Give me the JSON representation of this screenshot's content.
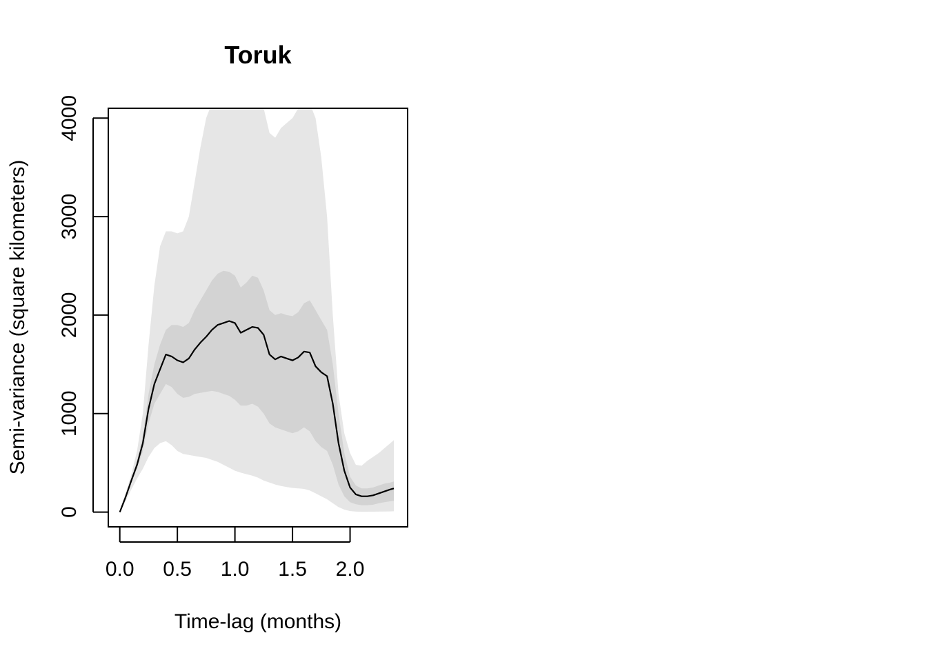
{
  "chart_data": {
    "type": "area",
    "title": "Toruk",
    "xlabel": "Time-lag (months)",
    "ylabel": "Semi-variance (square kilometers)",
    "xlim": [
      -0.1,
      2.5
    ],
    "ylim": [
      -150,
      4100
    ],
    "x_ticks": [
      0.0,
      0.5,
      1.0,
      1.5,
      2.0
    ],
    "x_tick_labels": [
      "0.0",
      "0.5",
      "1.0",
      "1.5",
      "2.0"
    ],
    "y_ticks": [
      0,
      1000,
      2000,
      3000,
      4000
    ],
    "y_tick_labels": [
      "0",
      "1000",
      "2000",
      "3000",
      "4000"
    ],
    "grid": false,
    "colors": {
      "outer_band": "#e6e6e6",
      "inner_band": "#d3d3d3",
      "line": "#000000"
    },
    "x": [
      0.0,
      0.05,
      0.1,
      0.15,
      0.2,
      0.25,
      0.3,
      0.35,
      0.4,
      0.45,
      0.5,
      0.55,
      0.6,
      0.65,
      0.7,
      0.75,
      0.8,
      0.85,
      0.9,
      0.95,
      1.0,
      1.05,
      1.1,
      1.15,
      1.2,
      1.25,
      1.3,
      1.35,
      1.4,
      1.45,
      1.5,
      1.55,
      1.6,
      1.65,
      1.7,
      1.75,
      1.8,
      1.85,
      1.9,
      1.95,
      2.0,
      2.05,
      2.1,
      2.15,
      2.2,
      2.25,
      2.3,
      2.35,
      2.38
    ],
    "series": [
      {
        "role": "estimate",
        "values": [
          0,
          150,
          320,
          480,
          700,
          1050,
          1300,
          1450,
          1600,
          1580,
          1540,
          1520,
          1560,
          1650,
          1720,
          1780,
          1850,
          1900,
          1920,
          1940,
          1920,
          1820,
          1850,
          1880,
          1870,
          1800,
          1600,
          1550,
          1580,
          1560,
          1540,
          1570,
          1630,
          1620,
          1480,
          1420,
          1380,
          1100,
          700,
          420,
          250,
          180,
          160,
          160,
          170,
          190,
          210,
          230,
          240
        ]
      },
      {
        "role": "inner_band_upper",
        "values": [
          10,
          160,
          340,
          520,
          780,
          1200,
          1500,
          1700,
          1850,
          1900,
          1900,
          1880,
          1920,
          2050,
          2150,
          2250,
          2350,
          2420,
          2450,
          2440,
          2400,
          2280,
          2330,
          2400,
          2380,
          2250,
          2050,
          2000,
          2020,
          2000,
          1990,
          2030,
          2120,
          2150,
          2050,
          1950,
          1850,
          1500,
          1000,
          600,
          360,
          270,
          240,
          240,
          250,
          270,
          290,
          300,
          310
        ]
      },
      {
        "role": "inner_band_lower",
        "values": [
          0,
          140,
          300,
          440,
          620,
          900,
          1100,
          1200,
          1300,
          1270,
          1200,
          1160,
          1170,
          1200,
          1210,
          1220,
          1230,
          1220,
          1200,
          1180,
          1140,
          1080,
          1080,
          1100,
          1070,
          1000,
          900,
          860,
          840,
          820,
          800,
          820,
          860,
          820,
          720,
          660,
          620,
          480,
          280,
          160,
          100,
          80,
          70,
          70,
          75,
          90,
          100,
          110,
          115
        ]
      },
      {
        "role": "outer_band_upper",
        "values": [
          20,
          190,
          380,
          620,
          1000,
          1700,
          2300,
          2700,
          2850,
          2850,
          2830,
          2850,
          3000,
          3350,
          3700,
          4000,
          4150,
          4150,
          4150,
          4150,
          4150,
          4150,
          4150,
          4150,
          4150,
          4100,
          3850,
          3800,
          3900,
          3950,
          4000,
          4100,
          4150,
          4150,
          4000,
          3600,
          3000,
          2000,
          1200,
          800,
          600,
          480,
          470,
          520,
          560,
          600,
          650,
          700,
          730
        ]
      },
      {
        "role": "outer_band_lower",
        "values": [
          0,
          110,
          230,
          340,
          440,
          560,
          650,
          700,
          720,
          680,
          620,
          590,
          580,
          570,
          560,
          550,
          530,
          510,
          480,
          450,
          420,
          400,
          385,
          370,
          350,
          320,
          300,
          280,
          265,
          255,
          245,
          240,
          235,
          220,
          190,
          160,
          130,
          90,
          50,
          25,
          10,
          5,
          3,
          3,
          4,
          5,
          6,
          7,
          8
        ]
      }
    ]
  }
}
